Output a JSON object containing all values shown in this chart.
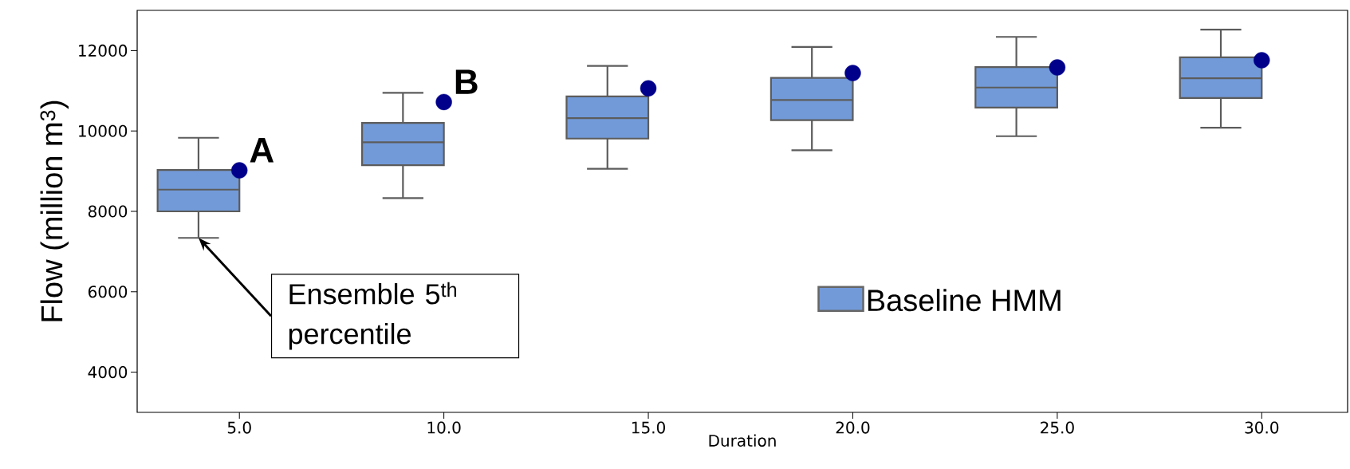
{
  "chart_data": {
    "type": "box",
    "xlabel": "Duration",
    "ylabel": "Flow (million m$^{3}$)",
    "xlim": [
      2.5,
      32.1
    ],
    "ylim": [
      3000,
      13000
    ],
    "xticks": [
      {
        "value": 5,
        "label": "5.0"
      },
      {
        "value": 10,
        "label": "10.0"
      },
      {
        "value": 15,
        "label": "15.0"
      },
      {
        "value": 20,
        "label": "20.0"
      },
      {
        "value": 25,
        "label": "25.0"
      },
      {
        "value": 30,
        "label": "30.0"
      }
    ],
    "yticks": [
      4000,
      6000,
      8000,
      10000,
      12000
    ],
    "legend": "right",
    "grid": false,
    "series": [
      {
        "name": "Baseline HMM",
        "color": "#729ad9",
        "x": [
          4,
          9,
          14,
          19,
          24,
          29
        ],
        "boxes": [
          {
            "low": 7340,
            "q1": 8000,
            "median": 8540,
            "q3": 9030,
            "high": 9830
          },
          {
            "low": 8330,
            "q1": 9150,
            "median": 9720,
            "q3": 10200,
            "high": 10950
          },
          {
            "low": 9060,
            "q1": 9810,
            "median": 10320,
            "q3": 10860,
            "high": 11620
          },
          {
            "low": 9520,
            "q1": 10270,
            "median": 10770,
            "q3": 11320,
            "high": 12090
          },
          {
            "low": 9870,
            "q1": 10580,
            "median": 11080,
            "q3": 11590,
            "high": 12340
          },
          {
            "low": 10080,
            "q1": 10820,
            "median": 11310,
            "q3": 11830,
            "high": 12520
          }
        ]
      },
      {
        "type": "scatter",
        "color": "#00008b",
        "marker": "circle",
        "x": [
          5,
          10,
          15,
          20,
          25,
          30
        ],
        "values": [
          9020,
          10720,
          11060,
          11440,
          11580,
          11760
        ]
      }
    ],
    "annotations": [
      {
        "text": "A",
        "x": 5,
        "y": 9020
      },
      {
        "text": "B",
        "x": 10,
        "y": 10720
      },
      "Ensemble 5$^{th}$ percentile"
    ]
  }
}
